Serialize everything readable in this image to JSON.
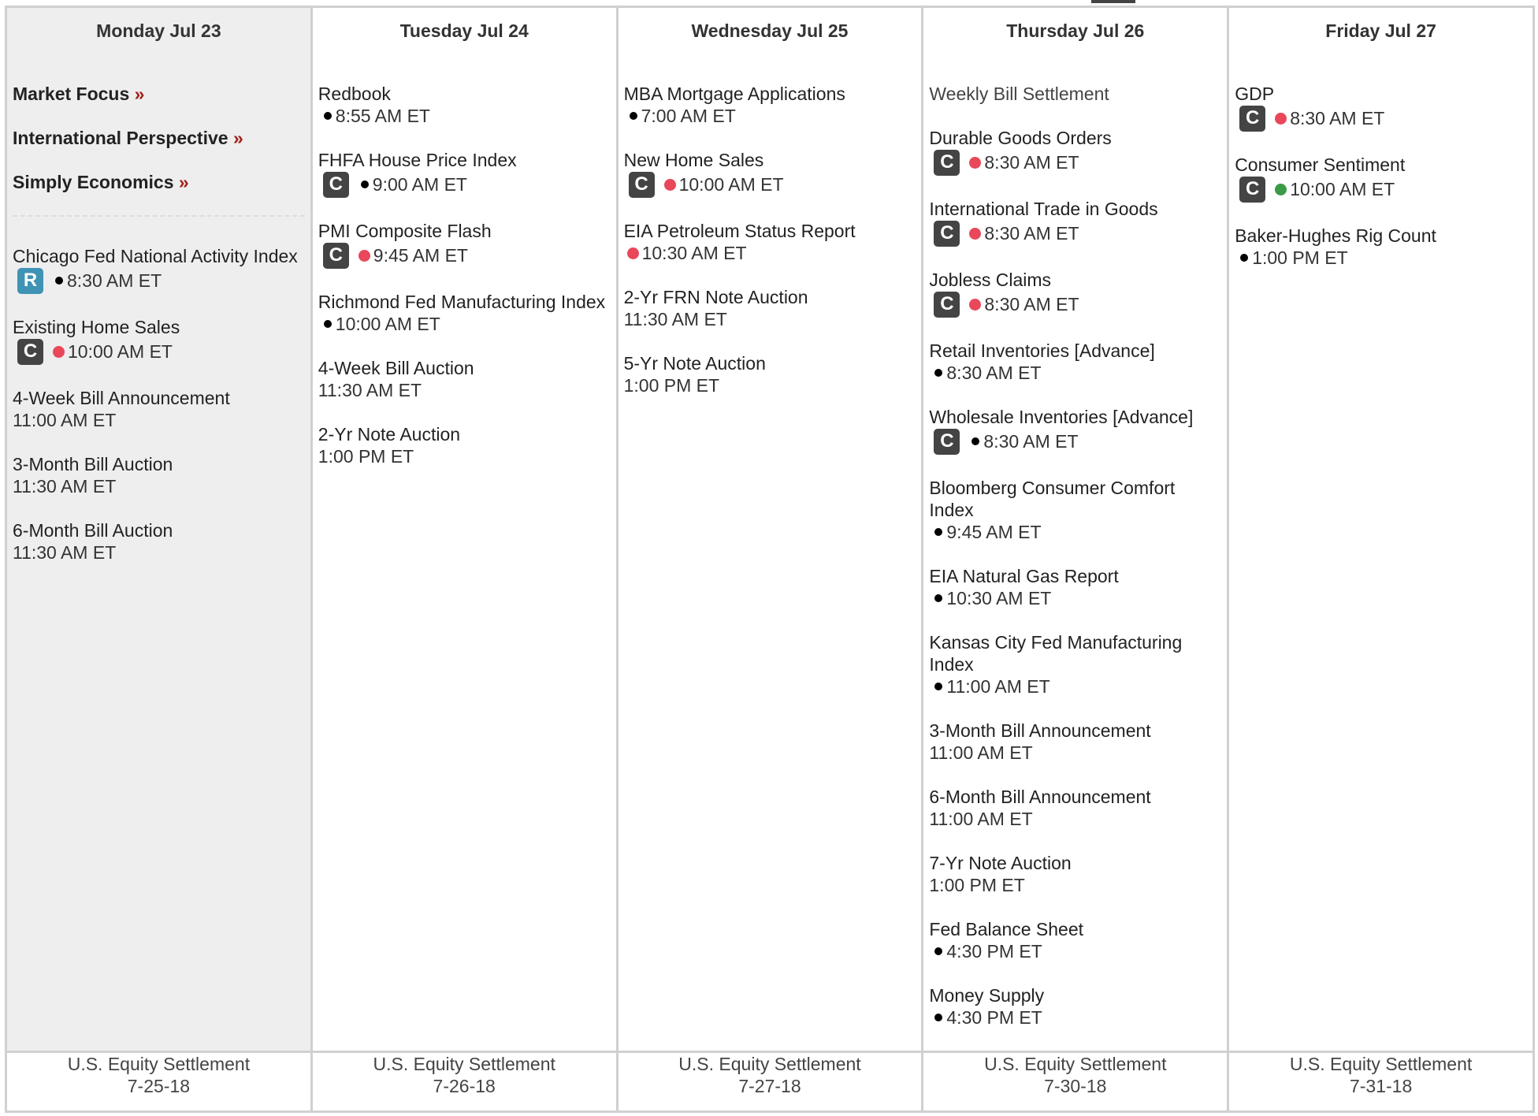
{
  "colors": {
    "today_bg": "#eeeeee",
    "border": "#d0d0d0",
    "badge_dark": "#444444",
    "badge_blue": "#3f93b4",
    "dot_red": "#e8485a",
    "dot_green": "#3a9a45",
    "link_arrow": "#a01e14"
  },
  "links": [
    {
      "label": "Market Focus",
      "arrow": "»"
    },
    {
      "label": "International Perspective",
      "arrow": "»"
    },
    {
      "label": "Simply Economics",
      "arrow": "»"
    }
  ],
  "days": [
    {
      "name": "Monday Jul 23",
      "events": [
        {
          "title": "Chicago Fed National Activity Index",
          "badge": "R",
          "dot": "black",
          "time": "8:30 AM ET"
        },
        {
          "title": "Existing Home Sales",
          "badge": "C",
          "dot": "red",
          "time": "10:00 AM ET"
        },
        {
          "title": "4-Week Bill Announcement",
          "badge": null,
          "dot": null,
          "time": "11:00 AM ET"
        },
        {
          "title": "3-Month Bill Auction",
          "badge": null,
          "dot": null,
          "time": "11:30 AM ET"
        },
        {
          "title": "6-Month Bill Auction",
          "badge": null,
          "dot": null,
          "time": "11:30 AM ET"
        }
      ]
    },
    {
      "name": "Tuesday Jul 24",
      "events": [
        {
          "title": "Redbook",
          "badge": null,
          "dot": "black",
          "time": "8:55 AM ET"
        },
        {
          "title": "FHFA House Price Index",
          "badge": "C",
          "dot": "black",
          "time": "9:00 AM ET"
        },
        {
          "title": "PMI Composite Flash",
          "badge": "C",
          "dot": "red",
          "time": "9:45 AM ET"
        },
        {
          "title": "Richmond Fed Manufacturing Index",
          "badge": null,
          "dot": "black",
          "time": "10:00 AM ET"
        },
        {
          "title": "4-Week Bill Auction",
          "badge": null,
          "dot": null,
          "time": "11:30 AM ET"
        },
        {
          "title": "2-Yr Note Auction",
          "badge": null,
          "dot": null,
          "time": "1:00 PM ET"
        }
      ]
    },
    {
      "name": "Wednesday Jul 25",
      "events": [
        {
          "title": "MBA Mortgage Applications",
          "badge": null,
          "dot": "black",
          "time": "7:00 AM ET"
        },
        {
          "title": "New Home Sales",
          "badge": "C",
          "dot": "red",
          "time": "10:00 AM ET"
        },
        {
          "title": "EIA Petroleum Status Report",
          "badge": null,
          "dot": "red",
          "time": "10:30 AM ET"
        },
        {
          "title": "2-Yr FRN Note Auction",
          "badge": null,
          "dot": null,
          "time": "11:30 AM ET"
        },
        {
          "title": "5-Yr Note Auction",
          "badge": null,
          "dot": null,
          "time": "1:00 PM ET"
        }
      ]
    },
    {
      "name": "Thursday Jul 26",
      "events": [
        {
          "title": "Weekly Bill Settlement",
          "badge": null,
          "dot": null,
          "time": null,
          "plain": true
        },
        {
          "title": "Durable Goods Orders",
          "badge": "C",
          "dot": "red",
          "time": "8:30 AM ET"
        },
        {
          "title": "International Trade in Goods",
          "badge": "C",
          "dot": "red",
          "time": "8:30 AM ET"
        },
        {
          "title": "Jobless Claims",
          "badge": "C",
          "dot": "red",
          "time": "8:30 AM ET"
        },
        {
          "title": "Retail Inventories [Advance]",
          "badge": null,
          "dot": "black",
          "time": "8:30 AM ET"
        },
        {
          "title": "Wholesale Inventories [Advance]",
          "badge": "C",
          "dot": "black",
          "time": "8:30 AM ET"
        },
        {
          "title": "Bloomberg Consumer Comfort Index",
          "badge": null,
          "dot": "black",
          "time": "9:45 AM ET"
        },
        {
          "title": "EIA Natural Gas Report",
          "badge": null,
          "dot": "black",
          "time": "10:30 AM ET"
        },
        {
          "title": "Kansas City Fed Manufacturing Index",
          "badge": null,
          "dot": "black",
          "time": "11:00 AM ET"
        },
        {
          "title": "3-Month Bill Announcement",
          "badge": null,
          "dot": null,
          "time": "11:00 AM ET"
        },
        {
          "title": "6-Month Bill Announcement",
          "badge": null,
          "dot": null,
          "time": "11:00 AM ET"
        },
        {
          "title": "7-Yr Note Auction",
          "badge": null,
          "dot": null,
          "time": "1:00 PM ET"
        },
        {
          "title": "Fed Balance Sheet",
          "badge": null,
          "dot": "black",
          "time": "4:30 PM ET"
        },
        {
          "title": "Money Supply",
          "badge": null,
          "dot": "black",
          "time": "4:30 PM ET"
        }
      ]
    },
    {
      "name": "Friday Jul 27",
      "events": [
        {
          "title": "GDP",
          "badge": "C",
          "dot": "red",
          "time": "8:30 AM ET"
        },
        {
          "title": "Consumer Sentiment",
          "badge": "C",
          "dot": "green",
          "time": "10:00 AM ET"
        },
        {
          "title": "Baker-Hughes Rig Count",
          "badge": null,
          "dot": "black",
          "time": "1:00 PM ET"
        }
      ]
    }
  ],
  "footer": [
    {
      "label": "U.S. Equity Settlement",
      "date": "7-25-18"
    },
    {
      "label": "U.S. Equity Settlement",
      "date": "7-26-18"
    },
    {
      "label": "U.S. Equity Settlement",
      "date": "7-27-18"
    },
    {
      "label": "U.S. Equity Settlement",
      "date": "7-30-18"
    },
    {
      "label": "U.S. Equity Settlement",
      "date": "7-31-18"
    }
  ]
}
